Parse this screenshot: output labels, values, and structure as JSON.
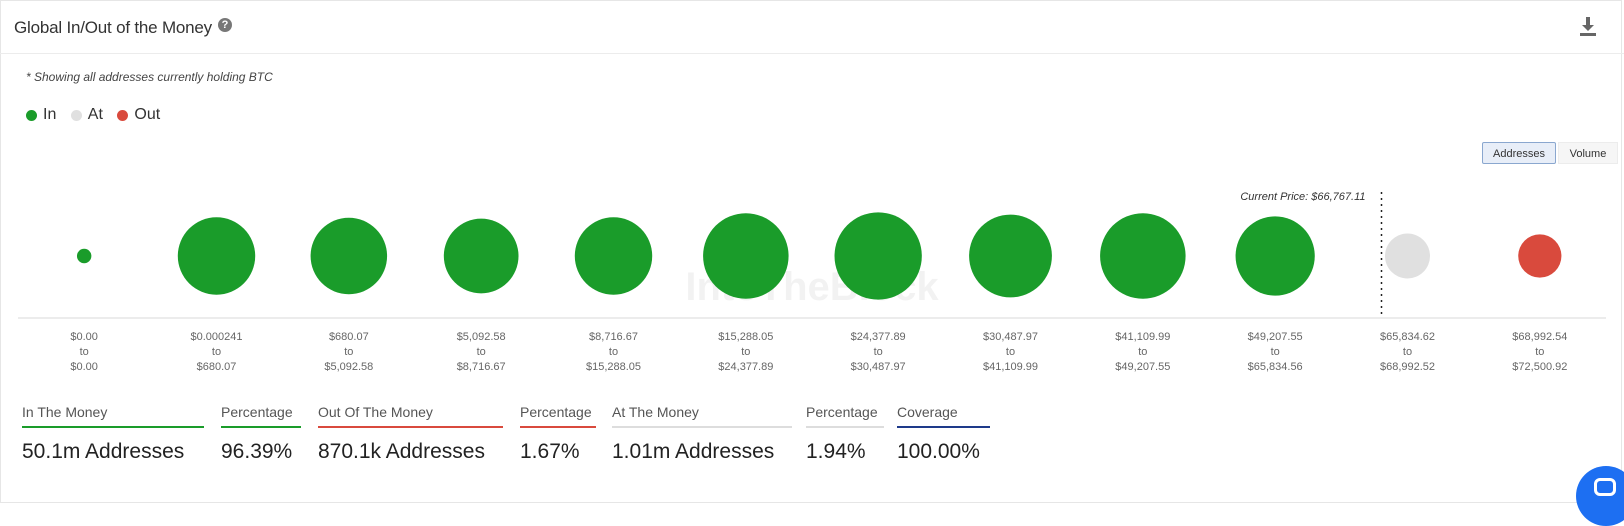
{
  "header": {
    "title": "Global In/Out of the Money",
    "help_icon": "question-circle-icon",
    "download_icon": "download-icon"
  },
  "note": "* Showing all addresses currently holding BTC",
  "legend": [
    {
      "label": "In",
      "color": "#1a9c2a"
    },
    {
      "label": "At",
      "color": "#e0e0e0"
    },
    {
      "label": "Out",
      "color": "#d94a3d"
    }
  ],
  "toggle": {
    "addresses": "Addresses",
    "volume": "Volume",
    "active": "Addresses"
  },
  "watermark": "IntoTheBlock",
  "chart_data": {
    "type": "scatter",
    "current_price_label": "Current Price: $66,767.11",
    "current_price": 66767.11,
    "categories": [
      {
        "from": "$0.00",
        "to": "$0.00",
        "status": "in",
        "size": 0.16
      },
      {
        "from": "$0.000241",
        "to": "$680.07",
        "status": "in",
        "size": 0.86
      },
      {
        "from": "$680.07",
        "to": "$5,092.58",
        "status": "in",
        "size": 0.85
      },
      {
        "from": "$5,092.58",
        "to": "$8,716.67",
        "status": "in",
        "size": 0.83
      },
      {
        "from": "$8,716.67",
        "to": "$15,288.05",
        "status": "in",
        "size": 0.86
      },
      {
        "from": "$15,288.05",
        "to": "$24,377.89",
        "status": "in",
        "size": 0.95
      },
      {
        "from": "$24,377.89",
        "to": "$30,487.97",
        "status": "in",
        "size": 0.97
      },
      {
        "from": "$30,487.97",
        "to": "$41,109.99",
        "status": "in",
        "size": 0.92
      },
      {
        "from": "$41,109.99",
        "to": "$49,207.55",
        "status": "in",
        "size": 0.95
      },
      {
        "from": "$49,207.55",
        "to": "$65,834.56",
        "status": "in",
        "size": 0.88
      },
      {
        "from": "$65,834.62",
        "to": "$68,992.52",
        "status": "at",
        "size": 0.5
      },
      {
        "from": "$68,992.54",
        "to": "$72,500.92",
        "status": "out",
        "size": 0.48
      }
    ],
    "to_word": "to",
    "colors": {
      "in": "#1a9c2a",
      "at": "#e0e0e0",
      "out": "#d94a3d"
    }
  },
  "stats": [
    {
      "label": "In The Money",
      "value": "50.1m Addresses",
      "color": "#1a9c2a"
    },
    {
      "label": "Percentage",
      "value": "96.39%",
      "color": "#1a9c2a"
    },
    {
      "label": "Out Of The Money",
      "value": "870.1k Addresses",
      "color": "#d94a3d"
    },
    {
      "label": "Percentage",
      "value": "1.67%",
      "color": "#d94a3d"
    },
    {
      "label": "At The Money",
      "value": "1.01m Addresses",
      "color": "#dddddd"
    },
    {
      "label": "Percentage",
      "value": "1.94%",
      "color": "#dddddd"
    },
    {
      "label": "Coverage",
      "value": "100.00%",
      "color": "#1e3a8a"
    }
  ],
  "chat_icon": "chat-bubble-icon"
}
